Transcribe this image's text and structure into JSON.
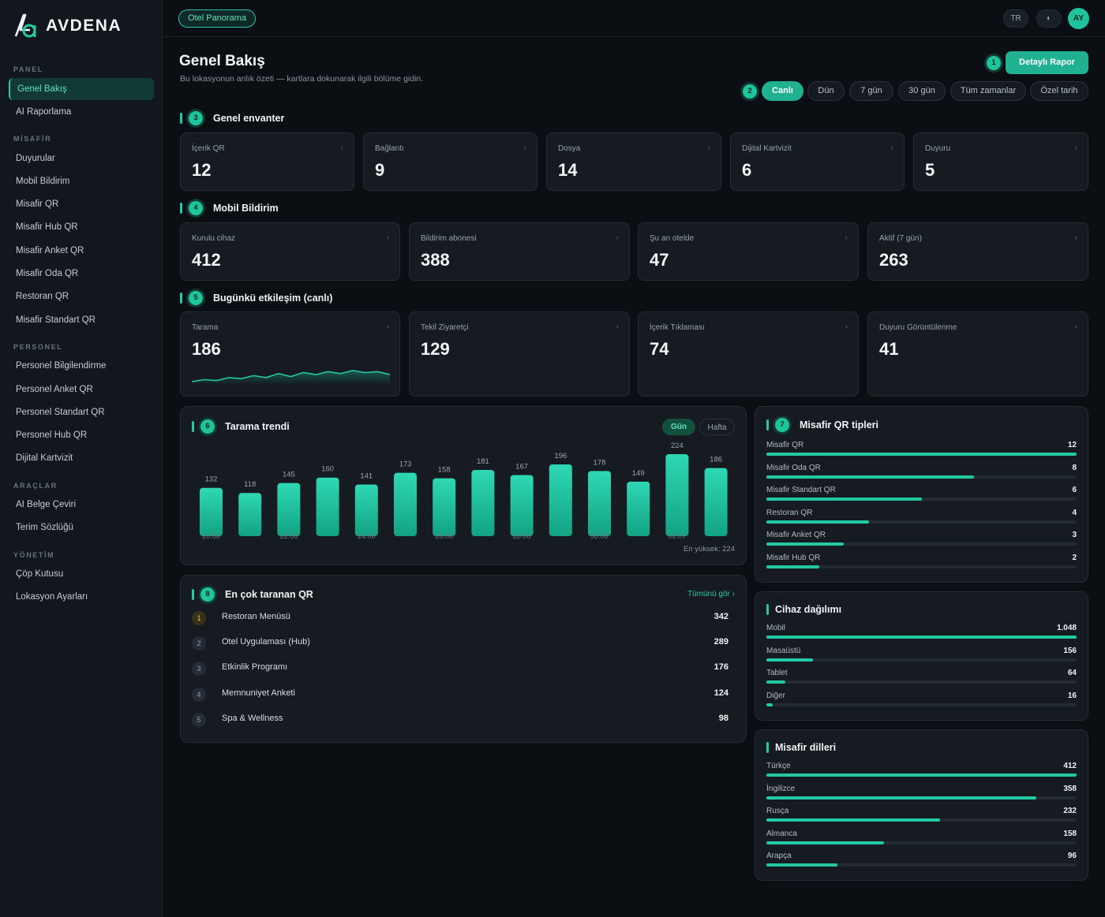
{
  "brand": {
    "name": "AVDENA"
  },
  "sidebar": {
    "sections": [
      {
        "title": "PANEL",
        "items": [
          "Genel Bakış",
          "AI Raporlama"
        ]
      },
      {
        "title": "MİSAFİR",
        "items": [
          "Duyurular",
          "Mobil Bildirim",
          "Misafir QR",
          "Misafir Hub QR",
          "Misafir Anket QR",
          "Misafir Oda QR",
          "Restoran QR",
          "Misafir Standart QR"
        ]
      },
      {
        "title": "PERSONEL",
        "items": [
          "Personel Bilgilendirme",
          "Personel Anket QR",
          "Personel Standart QR",
          "Personel Hub QR",
          "Dijital Kartvizit"
        ]
      },
      {
        "title": "ARAÇLAR",
        "items": [
          "AI Belge Çeviri",
          "Terim Sözlüğü"
        ]
      },
      {
        "title": "YÖNETİM",
        "items": [
          "Çöp Kutusu",
          "Lokasyon Ayarları"
        ]
      }
    ],
    "active": "Genel Bakış"
  },
  "topbar": {
    "hotel": "Otel Panorama",
    "lang": "TR",
    "theme_icon": "◐",
    "avatar": "AY"
  },
  "header": {
    "title": "Genel Bakış",
    "subtitle": "Bu lokasyonun anlık özeti — kartlara dokunarak ilgili bölüme gidin.",
    "report_button": "Detaylı Rapor",
    "badge_report": "1",
    "badge_range": "2",
    "ranges": [
      "Canlı",
      "Dün",
      "7 gün",
      "30 gün",
      "Tüm zamanlar",
      "Özel tarih"
    ],
    "active_range": "Canlı"
  },
  "inventory": {
    "badge": "3",
    "title": "Genel envanter",
    "cards": [
      {
        "label": "İçerik QR",
        "value": "12"
      },
      {
        "label": "Bağlantı",
        "value": "9"
      },
      {
        "label": "Dosya",
        "value": "14"
      },
      {
        "label": "Dijital Kartvizit",
        "value": "6"
      },
      {
        "label": "Duyuru",
        "value": "5"
      }
    ]
  },
  "mobile": {
    "badge": "4",
    "title": "Mobil Bildirim",
    "cards": [
      {
        "label": "Kurulu cihaz",
        "value": "412"
      },
      {
        "label": "Bildirim abonesi",
        "value": "388"
      },
      {
        "label": "Şu an otelde",
        "value": "47"
      },
      {
        "label": "Aktif (7 gün)",
        "value": "263"
      }
    ]
  },
  "today": {
    "badge": "5",
    "title": "Bugünkü etkileşim (canlı)",
    "cards": [
      {
        "label": "Tarama",
        "value": "186"
      },
      {
        "label": "Tekil Ziyaretçi",
        "value": "129"
      },
      {
        "label": "İçerik Tıklaması",
        "value": "74"
      },
      {
        "label": "Duyuru Görüntülenme",
        "value": "41"
      }
    ],
    "sparkline": [
      10,
      12,
      11,
      14,
      13,
      16,
      14,
      18,
      15,
      19,
      17,
      20,
      18,
      21,
      19,
      20,
      17
    ]
  },
  "trend": {
    "badge": "6",
    "title": "Tarama trendi",
    "toggle": [
      "Gün",
      "Hafta"
    ],
    "active_toggle": "Gün",
    "max_label": "En yüksek: 224"
  },
  "chart_data": {
    "type": "bar",
    "title": "Tarama trendi",
    "categories": [
      "20.06",
      "21.06",
      "22.06",
      "23.06",
      "24.06",
      "25.06",
      "26.06",
      "27.06",
      "28.06",
      "29.06",
      "30.06",
      "01.07",
      "02.07",
      "03.07"
    ],
    "visible_x_labels": [
      "20.06",
      "",
      "22.06",
      "",
      "24.06",
      "",
      "26.06",
      "",
      "28.06",
      "",
      "30.06",
      "",
      "02.07",
      ""
    ],
    "values": [
      132,
      118,
      145,
      160,
      141,
      173,
      158,
      181,
      167,
      196,
      178,
      149,
      224,
      186
    ],
    "ylim": [
      0,
      224
    ],
    "grid": false
  },
  "top_qr": {
    "badge": "8",
    "title": "En çok taranan QR",
    "see_all": "Tümünü gör ›",
    "rows": [
      {
        "rank": "1",
        "name": "Restoran Menüsü",
        "value": "342"
      },
      {
        "rank": "2",
        "name": "Otel Uygulaması (Hub)",
        "value": "289"
      },
      {
        "rank": "3",
        "name": "Etkinlik Programı",
        "value": "176"
      },
      {
        "rank": "4",
        "name": "Memnuniyet Anketi",
        "value": "124"
      },
      {
        "rank": "5",
        "name": "Spa & Wellness",
        "value": "98"
      }
    ]
  },
  "qr_types": {
    "badge": "7",
    "title": "Misafir QR tipleri",
    "rows": [
      {
        "label": "Misafir QR",
        "value": "12",
        "fraction": 1.0
      },
      {
        "label": "Misafir Oda QR",
        "value": "8",
        "fraction": 0.67
      },
      {
        "label": "Misafir Standart QR",
        "value": "6",
        "fraction": 0.5
      },
      {
        "label": "Restoran QR",
        "value": "4",
        "fraction": 0.33
      },
      {
        "label": "Misafir Anket QR",
        "value": "3",
        "fraction": 0.25
      },
      {
        "label": "Misafir Hub QR",
        "value": "2",
        "fraction": 0.17
      }
    ]
  },
  "devices": {
    "title": "Cihaz dağılımı",
    "rows": [
      {
        "label": "Mobil",
        "value": "1.048",
        "fraction": 1.0
      },
      {
        "label": "Masaüstü",
        "value": "156",
        "fraction": 0.15
      },
      {
        "label": "Tablet",
        "value": "64",
        "fraction": 0.06
      },
      {
        "label": "Diğer",
        "value": "16",
        "fraction": 0.02
      }
    ]
  },
  "languages": {
    "title": "Misafir dilleri",
    "rows": [
      {
        "label": "Türkçe",
        "value": "412",
        "fraction": 1.0
      },
      {
        "label": "İngilizce",
        "value": "358",
        "fraction": 0.87
      },
      {
        "label": "Rusça",
        "value": "232",
        "fraction": 0.56
      },
      {
        "label": "Almanca",
        "value": "158",
        "fraction": 0.38
      },
      {
        "label": "Arapça",
        "value": "96",
        "fraction": 0.23
      }
    ]
  },
  "colors": {
    "accent": "#22c9a2",
    "bg": "#0b0f13",
    "card": "#151b21"
  }
}
